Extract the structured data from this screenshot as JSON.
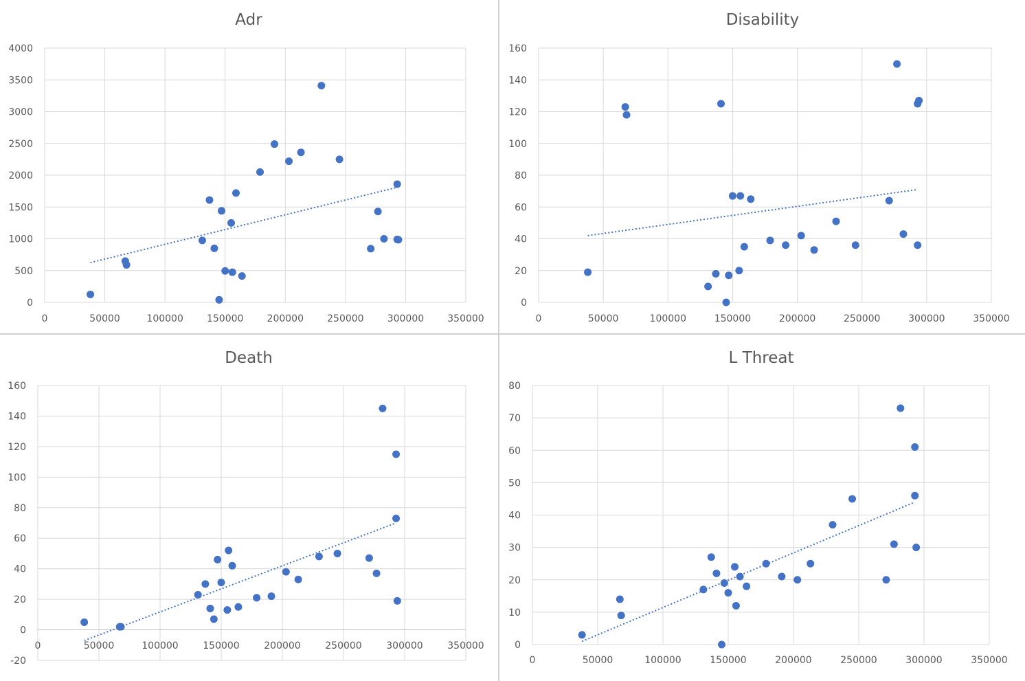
{
  "colors": {
    "marker": "#4472c4",
    "trendline": "#4472c4",
    "grid": "#d9d9d9",
    "text": "#595959"
  },
  "chart_data": [
    {
      "type": "scatter",
      "title": "Adr",
      "xlim": [
        0,
        350000
      ],
      "ylim": [
        0,
        4000
      ],
      "xticks": [
        0,
        50000,
        100000,
        150000,
        200000,
        250000,
        300000,
        350000
      ],
      "yticks": [
        0,
        500,
        1000,
        1500,
        2000,
        2500,
        3000,
        3500,
        4000
      ],
      "trendline": {
        "style": "dotted-linear",
        "x": [
          38000,
          293000
        ],
        "y": [
          625,
          1810
        ]
      },
      "points": [
        {
          "x": 38000,
          "y": 125
        },
        {
          "x": 67000,
          "y": 650
        },
        {
          "x": 68000,
          "y": 590
        },
        {
          "x": 131000,
          "y": 975
        },
        {
          "x": 137000,
          "y": 1610
        },
        {
          "x": 141000,
          "y": 850
        },
        {
          "x": 145000,
          "y": 40
        },
        {
          "x": 147000,
          "y": 1440
        },
        {
          "x": 150000,
          "y": 495
        },
        {
          "x": 155000,
          "y": 1250
        },
        {
          "x": 156000,
          "y": 475
        },
        {
          "x": 159000,
          "y": 1720
        },
        {
          "x": 164000,
          "y": 415
        },
        {
          "x": 179000,
          "y": 2050
        },
        {
          "x": 191000,
          "y": 2490
        },
        {
          "x": 203000,
          "y": 2220
        },
        {
          "x": 213000,
          "y": 2360
        },
        {
          "x": 230000,
          "y": 3410
        },
        {
          "x": 245000,
          "y": 2250
        },
        {
          "x": 271000,
          "y": 845
        },
        {
          "x": 277000,
          "y": 1430
        },
        {
          "x": 282000,
          "y": 1000
        },
        {
          "x": 293000,
          "y": 990
        },
        {
          "x": 293000,
          "y": 1860
        },
        {
          "x": 294000,
          "y": 985
        }
      ]
    },
    {
      "type": "scatter",
      "title": "Disability",
      "xlim": [
        0,
        350000
      ],
      "ylim": [
        0,
        160
      ],
      "xticks": [
        0,
        50000,
        100000,
        150000,
        200000,
        250000,
        300000,
        350000
      ],
      "yticks": [
        0,
        20,
        40,
        60,
        80,
        100,
        120,
        140,
        160
      ],
      "trendline": {
        "style": "dotted-linear",
        "x": [
          38000,
          293000
        ],
        "y": [
          42,
          71
        ]
      },
      "points": [
        {
          "x": 38000,
          "y": 19
        },
        {
          "x": 67000,
          "y": 123
        },
        {
          "x": 68000,
          "y": 118
        },
        {
          "x": 131000,
          "y": 10
        },
        {
          "x": 137000,
          "y": 18
        },
        {
          "x": 141000,
          "y": 125
        },
        {
          "x": 145000,
          "y": 0
        },
        {
          "x": 147000,
          "y": 17
        },
        {
          "x": 150000,
          "y": 67
        },
        {
          "x": 155000,
          "y": 20
        },
        {
          "x": 156000,
          "y": 67
        },
        {
          "x": 159000,
          "y": 35
        },
        {
          "x": 164000,
          "y": 65
        },
        {
          "x": 179000,
          "y": 39
        },
        {
          "x": 191000,
          "y": 36
        },
        {
          "x": 203000,
          "y": 42
        },
        {
          "x": 213000,
          "y": 33
        },
        {
          "x": 230000,
          "y": 51
        },
        {
          "x": 245000,
          "y": 36
        },
        {
          "x": 271000,
          "y": 64
        },
        {
          "x": 277000,
          "y": 150
        },
        {
          "x": 282000,
          "y": 43
        },
        {
          "x": 293000,
          "y": 125
        },
        {
          "x": 293000,
          "y": 36
        },
        {
          "x": 294000,
          "y": 127
        }
      ]
    },
    {
      "type": "scatter",
      "title": "Death",
      "xlim": [
        0,
        350000
      ],
      "ylim": [
        -20,
        160
      ],
      "xticks": [
        0,
        50000,
        100000,
        150000,
        200000,
        250000,
        300000,
        350000
      ],
      "yticks": [
        -20,
        0,
        20,
        40,
        60,
        80,
        100,
        120,
        140,
        160
      ],
      "trendline": {
        "style": "dotted-linear",
        "x": [
          38000,
          293000
        ],
        "y": [
          -7,
          70
        ]
      },
      "points": [
        {
          "x": 38000,
          "y": 5
        },
        {
          "x": 67000,
          "y": 2
        },
        {
          "x": 68000,
          "y": 2
        },
        {
          "x": 131000,
          "y": 23
        },
        {
          "x": 137000,
          "y": 30
        },
        {
          "x": 141000,
          "y": 14
        },
        {
          "x": 144000,
          "y": 7
        },
        {
          "x": 147000,
          "y": 46
        },
        {
          "x": 150000,
          "y": 31
        },
        {
          "x": 155000,
          "y": 13
        },
        {
          "x": 156000,
          "y": 52
        },
        {
          "x": 159000,
          "y": 42
        },
        {
          "x": 164000,
          "y": 15
        },
        {
          "x": 179000,
          "y": 21
        },
        {
          "x": 191000,
          "y": 22
        },
        {
          "x": 203000,
          "y": 38
        },
        {
          "x": 213000,
          "y": 33
        },
        {
          "x": 230000,
          "y": 48
        },
        {
          "x": 245000,
          "y": 50
        },
        {
          "x": 271000,
          "y": 47
        },
        {
          "x": 277000,
          "y": 37
        },
        {
          "x": 282000,
          "y": 145
        },
        {
          "x": 293000,
          "y": 115
        },
        {
          "x": 293000,
          "y": 73
        },
        {
          "x": 294000,
          "y": 19
        }
      ]
    },
    {
      "type": "scatter",
      "title": "L Threat",
      "xlim": [
        0,
        350000
      ],
      "ylim": [
        0,
        80
      ],
      "xticks": [
        0,
        50000,
        100000,
        150000,
        200000,
        250000,
        300000,
        350000
      ],
      "yticks": [
        0,
        10,
        20,
        30,
        40,
        50,
        60,
        70,
        80
      ],
      "trendline": {
        "style": "dotted-linear",
        "x": [
          38000,
          293000
        ],
        "y": [
          1,
          44
        ]
      },
      "points": [
        {
          "x": 38000,
          "y": 3
        },
        {
          "x": 67000,
          "y": 14
        },
        {
          "x": 68000,
          "y": 9
        },
        {
          "x": 131000,
          "y": 17
        },
        {
          "x": 137000,
          "y": 27
        },
        {
          "x": 141000,
          "y": 22
        },
        {
          "x": 145000,
          "y": 0
        },
        {
          "x": 147000,
          "y": 19
        },
        {
          "x": 150000,
          "y": 16
        },
        {
          "x": 155000,
          "y": 24
        },
        {
          "x": 156000,
          "y": 12
        },
        {
          "x": 159000,
          "y": 21
        },
        {
          "x": 164000,
          "y": 18
        },
        {
          "x": 179000,
          "y": 25
        },
        {
          "x": 191000,
          "y": 21
        },
        {
          "x": 203000,
          "y": 20
        },
        {
          "x": 213000,
          "y": 25
        },
        {
          "x": 230000,
          "y": 37
        },
        {
          "x": 245000,
          "y": 45
        },
        {
          "x": 271000,
          "y": 20
        },
        {
          "x": 277000,
          "y": 31
        },
        {
          "x": 282000,
          "y": 73
        },
        {
          "x": 293000,
          "y": 61
        },
        {
          "x": 293000,
          "y": 46
        },
        {
          "x": 294000,
          "y": 30
        }
      ]
    }
  ]
}
